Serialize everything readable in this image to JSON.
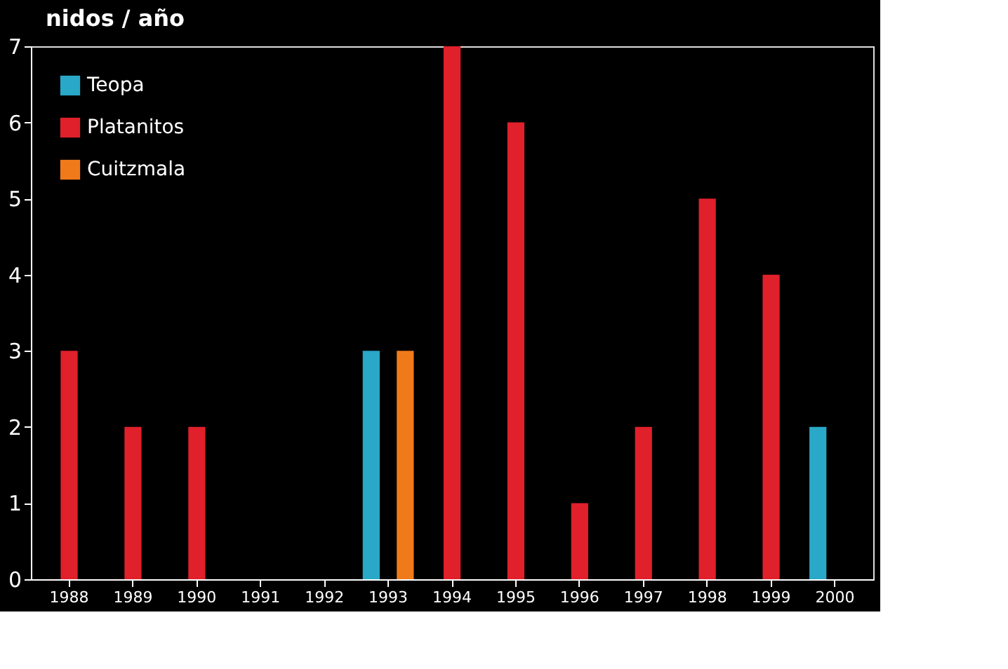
{
  "chart_data": {
    "type": "bar",
    "ylabel": "nidos / año",
    "categories": [
      "1988",
      "1989",
      "1990",
      "1991",
      "1992",
      "1993",
      "1994",
      "1995",
      "1996",
      "1997",
      "1998",
      "1999",
      "2000"
    ],
    "series": [
      {
        "name": "Teopa",
        "color": "#29a8c8",
        "values": [
          null,
          null,
          null,
          null,
          null,
          3,
          null,
          null,
          null,
          null,
          null,
          null,
          2
        ]
      },
      {
        "name": "Platanitos",
        "color": "#e0202a",
        "values": [
          3,
          2,
          2,
          null,
          null,
          null,
          7,
          6,
          1,
          2,
          5,
          4,
          null
        ]
      },
      {
        "name": "Cuitzmala",
        "color": "#f07a1a",
        "values": [
          null,
          null,
          null,
          null,
          null,
          3,
          null,
          null,
          null,
          null,
          null,
          null,
          null
        ]
      }
    ],
    "ylim": [
      0,
      7
    ],
    "yticks": [
      0,
      1,
      2,
      3,
      4,
      5,
      6,
      7
    ],
    "grid": false,
    "legend": "top left"
  }
}
